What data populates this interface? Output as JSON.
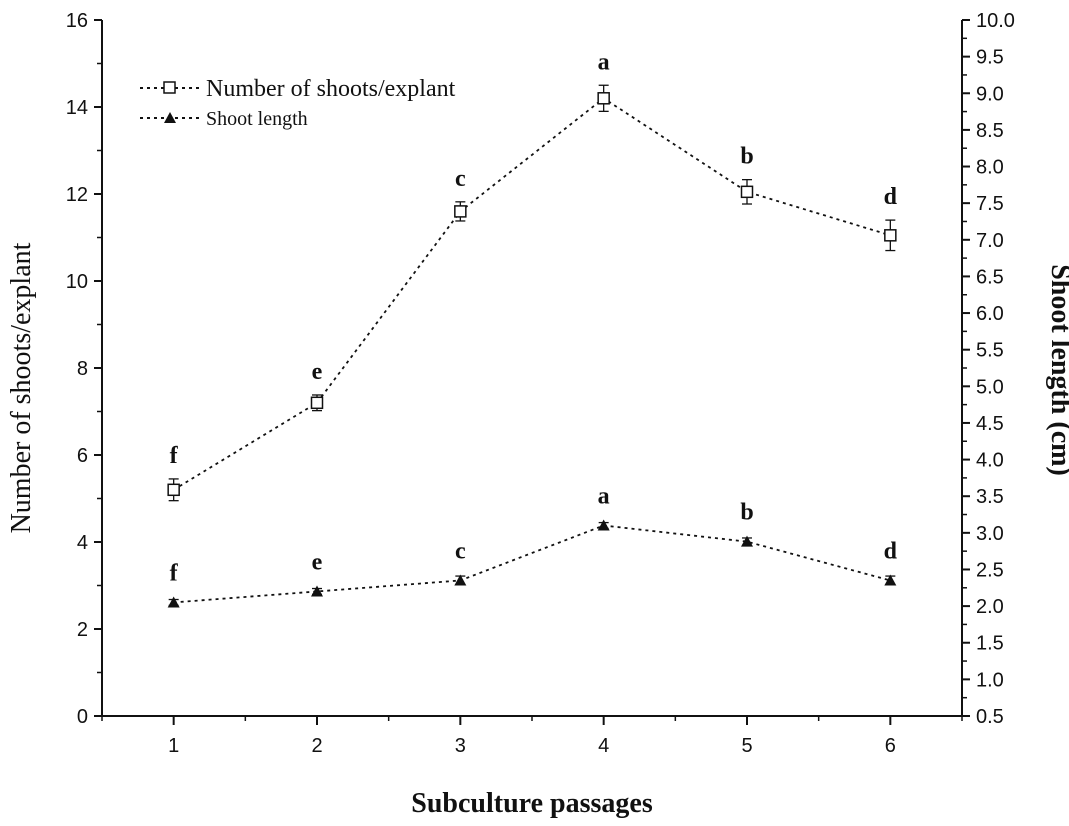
{
  "chart_data": {
    "type": "line",
    "x": [
      1,
      2,
      3,
      4,
      5,
      6
    ],
    "xlabel": "Subculture passages",
    "ylabel": "Number of shoots/explant",
    "y2label": "Shoot length (cm)",
    "xlim": [
      0.5,
      6.5
    ],
    "ylim": [
      0,
      16
    ],
    "y2lim": [
      0.5,
      10.0
    ],
    "x_ticks": [
      "1",
      "2",
      "3",
      "4",
      "5",
      "6"
    ],
    "y_ticks": [
      "0",
      "2",
      "4",
      "6",
      "8",
      "10",
      "12",
      "14",
      "16"
    ],
    "y2_ticks": [
      "0.5",
      "1.0",
      "1.5",
      "2.0",
      "2.5",
      "3.0",
      "3.5",
      "4.0",
      "4.5",
      "5.0",
      "5.5",
      "6.0",
      "6.5",
      "7.0",
      "7.5",
      "8.0",
      "8.5",
      "9.0",
      "9.5",
      "10.0"
    ],
    "grid": false,
    "legend_position": "top-left",
    "series": [
      {
        "name": "Number of shoots/explant",
        "axis": "left",
        "marker": "square",
        "values": [
          5.2,
          7.2,
          11.6,
          14.2,
          12.05,
          11.05
        ],
        "errors": [
          0.25,
          0.18,
          0.22,
          0.3,
          0.28,
          0.35
        ],
        "labels": [
          "f",
          "e",
          "c",
          "a",
          "b",
          "d"
        ]
      },
      {
        "name": "Shoot length",
        "axis": "right",
        "marker": "triangle",
        "values": [
          2.05,
          2.2,
          2.35,
          3.1,
          2.88,
          2.35
        ],
        "errors": [
          0.04,
          0.04,
          0.06,
          0.04,
          0.05,
          0.06
        ],
        "labels": [
          "f",
          "e",
          "c",
          "a",
          "b",
          "d"
        ]
      }
    ]
  }
}
